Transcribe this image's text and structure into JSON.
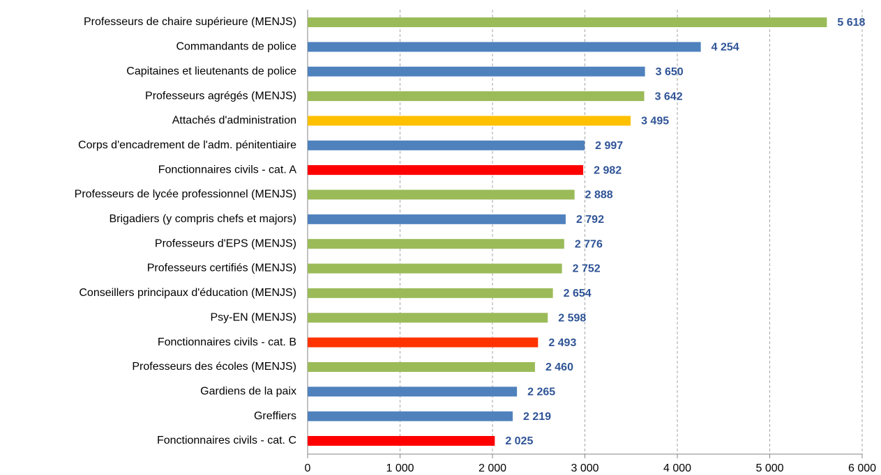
{
  "chart_data": {
    "type": "hbar",
    "categories": [
      "Professeurs de chaire supérieure (MENJS)",
      "Commandants de police",
      "Capitaines et lieutenants de police",
      "Professeurs agrégés (MENJS)",
      "Attachés d'administration",
      "Corps d'encadrement de l'adm. pénitentiaire",
      "Fonctionnaires civils - cat. A",
      "Professeurs de lycée professionnel (MENJS)",
      "Brigadiers (y compris chefs et majors)",
      "Professeurs d'EPS (MENJS)",
      "Professeurs certifiés (MENJS)",
      "Conseillers principaux d'éducation (MENJS)",
      "Psy-EN (MENJS)",
      "Fonctionnaires civils - cat. B",
      "Professeurs des écoles (MENJS)",
      "Gardiens de la paix",
      "Greffiers",
      "Fonctionnaires civils - cat. C"
    ],
    "values": [
      5618,
      4254,
      3650,
      3642,
      3495,
      2997,
      2982,
      2888,
      2792,
      2776,
      2752,
      2654,
      2598,
      2493,
      2460,
      2265,
      2219,
      2025
    ],
    "value_labels": [
      "5 618",
      "4 254",
      "3 650",
      "3 642",
      "3 495",
      "2 997",
      "2 982",
      "2 888",
      "2 792",
      "2 776",
      "2 752",
      "2 654",
      "2 598",
      "2 493",
      "2 460",
      "2 265",
      "2 219",
      "2 025"
    ],
    "colors": [
      "#9bbb59",
      "#4f81bd",
      "#4f81bd",
      "#9bbb59",
      "#ffc000",
      "#4f81bd",
      "#ff0000",
      "#9bbb59",
      "#4f81bd",
      "#9bbb59",
      "#9bbb59",
      "#9bbb59",
      "#9bbb59",
      "#ff3300",
      "#9bbb59",
      "#4f81bd",
      "#4f81bd",
      "#ff0000"
    ],
    "xlim": [
      0,
      6000
    ],
    "xticks": [
      0,
      {
        "value": 1000,
        "label": "1 000"
      },
      {
        "value": 2000,
        "label": "2 000"
      },
      {
        "value": 3000,
        "label": "3 000"
      },
      {
        "value": 4000,
        "label": "4 000"
      },
      {
        "value": 5000,
        "label": "5 000"
      },
      {
        "value": 6000,
        "label": "6 000"
      }
    ],
    "grid": true
  }
}
